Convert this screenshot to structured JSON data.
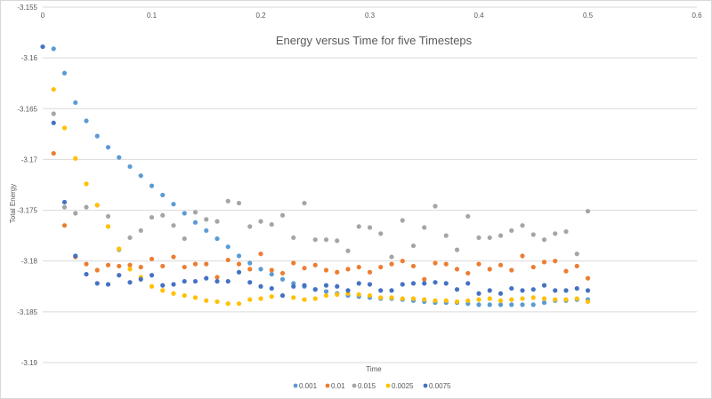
{
  "chart_data": {
    "type": "scatter",
    "title": "Energy versus Time for five Timesteps",
    "xlabel": "Time",
    "ylabel": "Total Energy",
    "xlim": [
      0,
      0.6
    ],
    "ylim": [
      -3.19,
      -3.155
    ],
    "x_ticks": [
      "0",
      "0.1",
      "0.2",
      "0.3",
      "0.4",
      "0.5",
      "0.6"
    ],
    "y_ticks": [
      "-3.155",
      "-3.16",
      "-3.165",
      "-3.17",
      "-3.175",
      "-3.18",
      "-3.185",
      "-3.19"
    ],
    "grid": "horizontal",
    "legend_position": "bottom",
    "series": [
      {
        "name": "0.001",
        "color": "#5b9bd5",
        "points": [
          [
            0.01,
            -3.1591
          ],
          [
            0.02,
            -3.1615
          ],
          [
            0.03,
            -3.1644
          ],
          [
            0.04,
            -3.1662
          ],
          [
            0.05,
            -3.1677
          ],
          [
            0.06,
            -3.1688
          ],
          [
            0.07,
            -3.1698
          ],
          [
            0.08,
            -3.1707
          ],
          [
            0.09,
            -3.1716
          ],
          [
            0.1,
            -3.1726
          ],
          [
            0.11,
            -3.1735
          ],
          [
            0.12,
            -3.1744
          ],
          [
            0.13,
            -3.1753
          ],
          [
            0.14,
            -3.1762
          ],
          [
            0.15,
            -3.177
          ],
          [
            0.16,
            -3.1778
          ],
          [
            0.17,
            -3.1786
          ],
          [
            0.18,
            -3.1795
          ],
          [
            0.19,
            -3.1802
          ],
          [
            0.2,
            -3.1808
          ],
          [
            0.21,
            -3.1813
          ],
          [
            0.22,
            -3.1818
          ],
          [
            0.23,
            -3.1822
          ],
          [
            0.24,
            -3.1825
          ],
          [
            0.25,
            -3.1828
          ],
          [
            0.26,
            -3.183
          ],
          [
            0.27,
            -3.1832
          ],
          [
            0.28,
            -3.1834
          ],
          [
            0.29,
            -3.1835
          ],
          [
            0.3,
            -3.1836
          ],
          [
            0.31,
            -3.1837
          ],
          [
            0.32,
            -3.1837
          ],
          [
            0.33,
            -3.1838
          ],
          [
            0.34,
            -3.1839
          ],
          [
            0.35,
            -3.184
          ],
          [
            0.36,
            -3.1841
          ],
          [
            0.37,
            -3.1841
          ],
          [
            0.38,
            -3.1841
          ],
          [
            0.39,
            -3.1842
          ],
          [
            0.4,
            -3.1843
          ],
          [
            0.41,
            -3.1843
          ],
          [
            0.42,
            -3.1843
          ],
          [
            0.43,
            -3.1843
          ],
          [
            0.44,
            -3.1843
          ],
          [
            0.45,
            -3.1843
          ],
          [
            0.46,
            -3.1841
          ],
          [
            0.47,
            -3.1839
          ],
          [
            0.48,
            -3.1839
          ],
          [
            0.49,
            -3.1838
          ],
          [
            0.5,
            -3.1838
          ]
        ]
      },
      {
        "name": "0.01",
        "color": "#ed7d31",
        "points": [
          [
            0.01,
            -3.1694
          ],
          [
            0.02,
            -3.1765
          ],
          [
            0.03,
            -3.1796
          ],
          [
            0.04,
            -3.1803
          ],
          [
            0.05,
            -3.1809
          ],
          [
            0.06,
            -3.1804
          ],
          [
            0.07,
            -3.1805
          ],
          [
            0.08,
            -3.1804
          ],
          [
            0.09,
            -3.1806
          ],
          [
            0.1,
            -3.1798
          ],
          [
            0.11,
            -3.1805
          ],
          [
            0.12,
            -3.1796
          ],
          [
            0.13,
            -3.1806
          ],
          [
            0.14,
            -3.1803
          ],
          [
            0.15,
            -3.1803
          ],
          [
            0.16,
            -3.1816
          ],
          [
            0.17,
            -3.1799
          ],
          [
            0.18,
            -3.1803
          ],
          [
            0.19,
            -3.1808
          ],
          [
            0.2,
            -3.1793
          ],
          [
            0.21,
            -3.1809
          ],
          [
            0.22,
            -3.1812
          ],
          [
            0.23,
            -3.1802
          ],
          [
            0.24,
            -3.1807
          ],
          [
            0.25,
            -3.1804
          ],
          [
            0.26,
            -3.1809
          ],
          [
            0.27,
            -3.1811
          ],
          [
            0.28,
            -3.1808
          ],
          [
            0.29,
            -3.1806
          ],
          [
            0.3,
            -3.1811
          ],
          [
            0.31,
            -3.1806
          ],
          [
            0.32,
            -3.1803
          ],
          [
            0.33,
            -3.18
          ],
          [
            0.34,
            -3.1805
          ],
          [
            0.35,
            -3.1818
          ],
          [
            0.36,
            -3.1802
          ],
          [
            0.37,
            -3.1803
          ],
          [
            0.38,
            -3.1808
          ],
          [
            0.39,
            -3.1812
          ],
          [
            0.4,
            -3.1803
          ],
          [
            0.41,
            -3.1808
          ],
          [
            0.42,
            -3.1804
          ],
          [
            0.43,
            -3.1809
          ],
          [
            0.44,
            -3.1795
          ],
          [
            0.45,
            -3.1806
          ],
          [
            0.46,
            -3.1801
          ],
          [
            0.47,
            -3.18
          ],
          [
            0.48,
            -3.181
          ],
          [
            0.49,
            -3.1805
          ],
          [
            0.5,
            -3.1817
          ]
        ]
      },
      {
        "name": "0.015",
        "color": "#a5a5a5",
        "points": [
          [
            0.01,
            -3.1655
          ],
          [
            0.02,
            -3.1747
          ],
          [
            0.03,
            -3.1753
          ],
          [
            0.04,
            -3.1747
          ],
          [
            0.05,
            -3.1745
          ],
          [
            0.06,
            -3.1756
          ],
          [
            0.07,
            -3.1789
          ],
          [
            0.08,
            -3.1777
          ],
          [
            0.09,
            -3.177
          ],
          [
            0.1,
            -3.1757
          ],
          [
            0.11,
            -3.1755
          ],
          [
            0.12,
            -3.1765
          ],
          [
            0.13,
            -3.1778
          ],
          [
            0.14,
            -3.1752
          ],
          [
            0.15,
            -3.1759
          ],
          [
            0.16,
            -3.1761
          ],
          [
            0.17,
            -3.1741
          ],
          [
            0.18,
            -3.1743
          ],
          [
            0.19,
            -3.1766
          ],
          [
            0.2,
            -3.1761
          ],
          [
            0.21,
            -3.1764
          ],
          [
            0.22,
            -3.1755
          ],
          [
            0.23,
            -3.1777
          ],
          [
            0.24,
            -3.1743
          ],
          [
            0.25,
            -3.1779
          ],
          [
            0.26,
            -3.1779
          ],
          [
            0.27,
            -3.178
          ],
          [
            0.28,
            -3.179
          ],
          [
            0.29,
            -3.1766
          ],
          [
            0.3,
            -3.1767
          ],
          [
            0.31,
            -3.1773
          ],
          [
            0.32,
            -3.1796
          ],
          [
            0.33,
            -3.176
          ],
          [
            0.34,
            -3.1785
          ],
          [
            0.35,
            -3.1767
          ],
          [
            0.36,
            -3.1746
          ],
          [
            0.37,
            -3.1775
          ],
          [
            0.38,
            -3.1789
          ],
          [
            0.39,
            -3.1756
          ],
          [
            0.4,
            -3.1777
          ],
          [
            0.41,
            -3.1777
          ],
          [
            0.42,
            -3.1775
          ],
          [
            0.43,
            -3.177
          ],
          [
            0.44,
            -3.1765
          ],
          [
            0.45,
            -3.1774
          ],
          [
            0.46,
            -3.1779
          ],
          [
            0.47,
            -3.1773
          ],
          [
            0.48,
            -3.1771
          ],
          [
            0.49,
            -3.1793
          ],
          [
            0.5,
            -3.1751
          ]
        ]
      },
      {
        "name": "0.0025",
        "color": "#ffc000",
        "points": [
          [
            0.01,
            -3.1631
          ],
          [
            0.02,
            -3.1669
          ],
          [
            0.03,
            -3.1699
          ],
          [
            0.04,
            -3.1724
          ],
          [
            0.05,
            -3.1745
          ],
          [
            0.06,
            -3.1766
          ],
          [
            0.07,
            -3.1788
          ],
          [
            0.08,
            -3.1808
          ],
          [
            0.09,
            -3.1816
          ],
          [
            0.1,
            -3.1825
          ],
          [
            0.11,
            -3.1829
          ],
          [
            0.12,
            -3.1832
          ],
          [
            0.13,
            -3.1834
          ],
          [
            0.14,
            -3.1836
          ],
          [
            0.15,
            -3.1839
          ],
          [
            0.16,
            -3.184
          ],
          [
            0.17,
            -3.1842
          ],
          [
            0.18,
            -3.1842
          ],
          [
            0.19,
            -3.1838
          ],
          [
            0.2,
            -3.1837
          ],
          [
            0.21,
            -3.1835
          ],
          [
            0.22,
            -3.1834
          ],
          [
            0.23,
            -3.1836
          ],
          [
            0.24,
            -3.1838
          ],
          [
            0.25,
            -3.1837
          ],
          [
            0.26,
            -3.1834
          ],
          [
            0.27,
            -3.1833
          ],
          [
            0.28,
            -3.1832
          ],
          [
            0.29,
            -3.1833
          ],
          [
            0.3,
            -3.1834
          ],
          [
            0.31,
            -3.1836
          ],
          [
            0.32,
            -3.1836
          ],
          [
            0.33,
            -3.1837
          ],
          [
            0.34,
            -3.1837
          ],
          [
            0.35,
            -3.1838
          ],
          [
            0.36,
            -3.1839
          ],
          [
            0.37,
            -3.1839
          ],
          [
            0.38,
            -3.184
          ],
          [
            0.39,
            -3.1839
          ],
          [
            0.4,
            -3.1838
          ],
          [
            0.41,
            -3.1837
          ],
          [
            0.42,
            -3.1839
          ],
          [
            0.43,
            -3.1838
          ],
          [
            0.44,
            -3.1837
          ],
          [
            0.45,
            -3.1836
          ],
          [
            0.46,
            -3.1837
          ],
          [
            0.47,
            -3.1838
          ],
          [
            0.48,
            -3.1838
          ],
          [
            0.49,
            -3.1837
          ],
          [
            0.5,
            -3.184
          ]
        ]
      },
      {
        "name": "0.0075",
        "color": "#4472c4",
        "points": [
          [
            0,
            -3.1589
          ],
          [
            0.01,
            -3.1664
          ],
          [
            0.02,
            -3.1742
          ],
          [
            0.03,
            -3.1795
          ],
          [
            0.04,
            -3.1813
          ],
          [
            0.05,
            -3.1822
          ],
          [
            0.06,
            -3.1823
          ],
          [
            0.07,
            -3.1814
          ],
          [
            0.08,
            -3.1821
          ],
          [
            0.09,
            -3.1818
          ],
          [
            0.1,
            -3.1814
          ],
          [
            0.11,
            -3.1824
          ],
          [
            0.12,
            -3.1823
          ],
          [
            0.13,
            -3.182
          ],
          [
            0.14,
            -3.182
          ],
          [
            0.15,
            -3.1817
          ],
          [
            0.16,
            -3.182
          ],
          [
            0.17,
            -3.182
          ],
          [
            0.18,
            -3.1811
          ],
          [
            0.19,
            -3.1821
          ],
          [
            0.2,
            -3.1825
          ],
          [
            0.21,
            -3.1827
          ],
          [
            0.22,
            -3.1834
          ],
          [
            0.23,
            -3.1825
          ],
          [
            0.24,
            -3.1824
          ],
          [
            0.25,
            -3.1828
          ],
          [
            0.26,
            -3.1824
          ],
          [
            0.27,
            -3.1825
          ],
          [
            0.28,
            -3.1829
          ],
          [
            0.29,
            -3.1822
          ],
          [
            0.3,
            -3.1823
          ],
          [
            0.31,
            -3.1829
          ],
          [
            0.32,
            -3.1829
          ],
          [
            0.33,
            -3.1823
          ],
          [
            0.34,
            -3.1822
          ],
          [
            0.35,
            -3.1822
          ],
          [
            0.36,
            -3.1821
          ],
          [
            0.37,
            -3.1822
          ],
          [
            0.38,
            -3.1828
          ],
          [
            0.39,
            -3.1822
          ],
          [
            0.4,
            -3.1832
          ],
          [
            0.41,
            -3.1829
          ],
          [
            0.42,
            -3.1832
          ],
          [
            0.43,
            -3.1827
          ],
          [
            0.44,
            -3.1829
          ],
          [
            0.45,
            -3.1828
          ],
          [
            0.46,
            -3.1824
          ],
          [
            0.47,
            -3.1829
          ],
          [
            0.48,
            -3.1829
          ],
          [
            0.49,
            -3.1827
          ],
          [
            0.5,
            -3.1829
          ]
        ]
      }
    ]
  }
}
